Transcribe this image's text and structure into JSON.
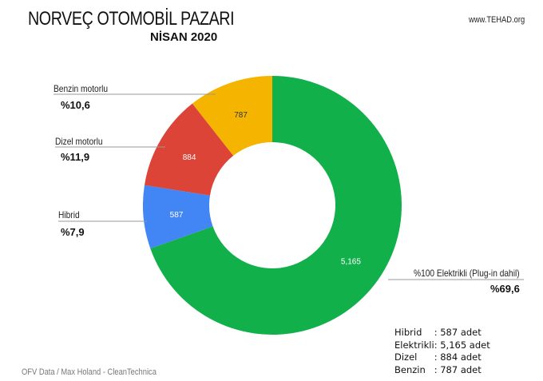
{
  "header": {
    "title": "NORVEÇ OTOMOBİL PAZARI",
    "subtitle": "NİSAN 2020",
    "site": "www.TEHAD.org"
  },
  "source": "OFV Data / Max Holand - CleanTechnica",
  "chart_data": {
    "type": "pie",
    "donut": true,
    "title": "NORVEÇ OTOMOBİL PAZARI",
    "subtitle": "NİSAN 2020",
    "slices": [
      {
        "name": "%100 Elektrikli (Plug-in dahil)",
        "value": 5165,
        "label": "5,165",
        "percent": "%69,6",
        "color": "#12b04b"
      },
      {
        "name": "Hibrid",
        "value": 587,
        "label": "587",
        "percent": "%7,9",
        "color": "#4285f4"
      },
      {
        "name": "Dizel motorlu",
        "value": 884,
        "label": "884",
        "percent": "%11,9",
        "color": "#db4437"
      },
      {
        "name": "Benzin motorlu",
        "value": 787,
        "label": "787",
        "percent": "%10,6",
        "color": "#f4b400"
      }
    ]
  },
  "summary": [
    {
      "name": "Hibrid",
      "value": ": 587 adet"
    },
    {
      "name": "Elektrikli",
      "value": ": 5,165 adet"
    },
    {
      "name": "Dizel",
      "value": ": 884 adet"
    },
    {
      "name": "Benzin",
      "value": ": 787 adet"
    }
  ]
}
